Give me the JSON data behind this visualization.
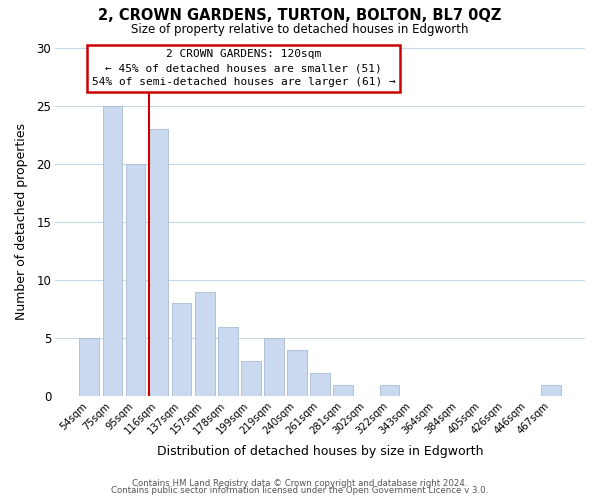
{
  "title": "2, CROWN GARDENS, TURTON, BOLTON, BL7 0QZ",
  "subtitle": "Size of property relative to detached houses in Edgworth",
  "xlabel": "Distribution of detached houses by size in Edgworth",
  "ylabel": "Number of detached properties",
  "bar_labels": [
    "54sqm",
    "75sqm",
    "95sqm",
    "116sqm",
    "137sqm",
    "157sqm",
    "178sqm",
    "199sqm",
    "219sqm",
    "240sqm",
    "261sqm",
    "281sqm",
    "302sqm",
    "322sqm",
    "343sqm",
    "364sqm",
    "384sqm",
    "405sqm",
    "426sqm",
    "446sqm",
    "467sqm"
  ],
  "bar_values": [
    5,
    25,
    20,
    23,
    8,
    9,
    6,
    3,
    5,
    4,
    2,
    1,
    0,
    1,
    0,
    0,
    0,
    0,
    0,
    0,
    1
  ],
  "bar_color": "#cad9ed",
  "bar_edge_color": "#aabbd4",
  "highlight_line_color": "#cc0000",
  "highlight_bar_index": 3,
  "ylim": [
    0,
    30
  ],
  "yticks": [
    0,
    5,
    10,
    15,
    20,
    25,
    30
  ],
  "annotation_title": "2 CROWN GARDENS: 120sqm",
  "annotation_line1": "← 45% of detached houses are smaller (51)",
  "annotation_line2": "54% of semi-detached houses are larger (61) →",
  "footer1": "Contains HM Land Registry data © Crown copyright and database right 2024.",
  "footer2": "Contains public sector information licensed under the Open Government Licence v 3.0.",
  "background_color": "#ffffff",
  "grid_color": "#c8d8e8"
}
